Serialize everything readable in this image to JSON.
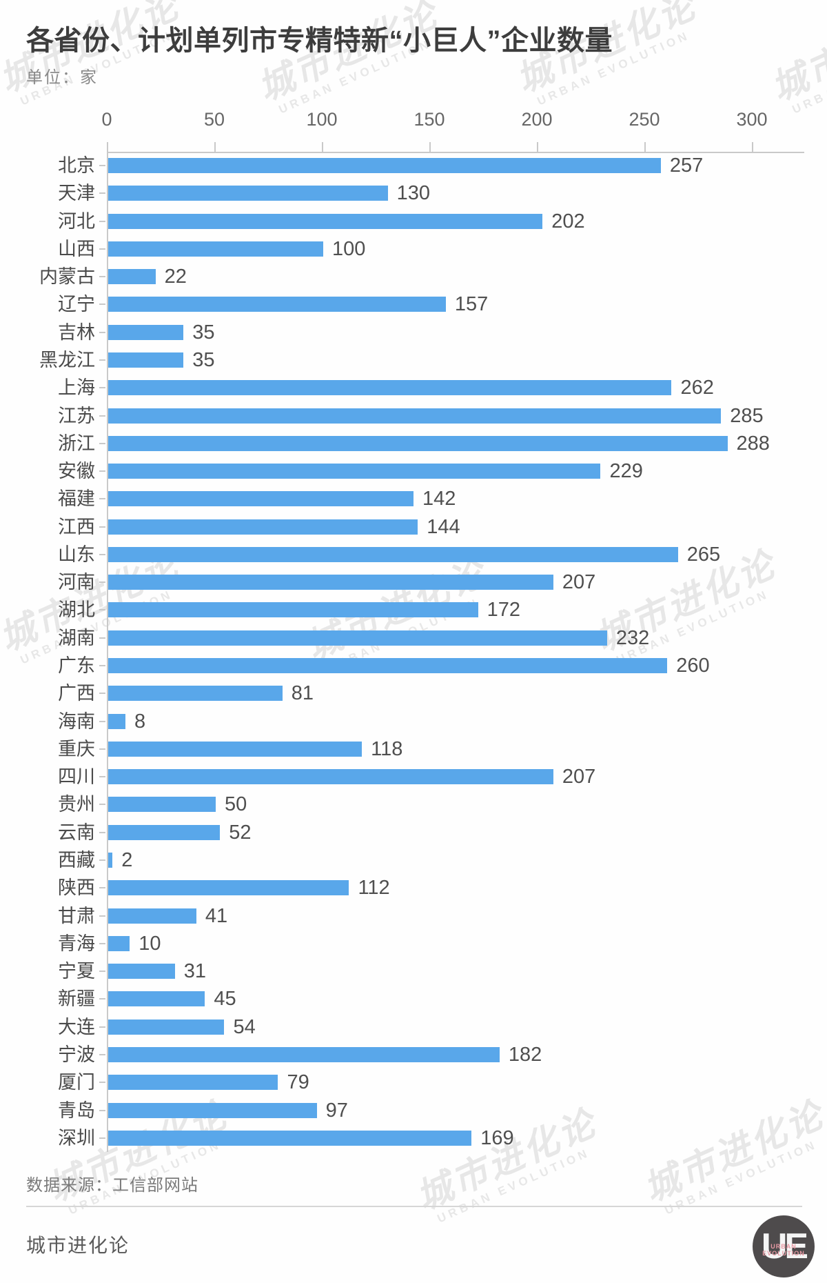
{
  "page": {
    "title": "各省份、计划单列市专精特新“小巨人”企业数量",
    "unit_label": "单位：家",
    "source_label": "数据来源：工信部网站",
    "footer_brand": "城市进化论",
    "watermark_zh": "城市进化论",
    "watermark_en": "URBAN EVOLUTION",
    "logo": {
      "monogram": "UE",
      "line1": "URBAN",
      "line2": "EVOLUTION"
    }
  },
  "colors": {
    "bar": "#59a7ea",
    "axis": "#c9c9c9",
    "title-text": "#3d3d3d",
    "label-text": "#4a4a4a",
    "value-text": "#4f4f4f",
    "tick-text": "#666666",
    "muted-text": "#8a8a8a",
    "logo-bg": "#4e4b4c",
    "logo-accent": "#e89aa4"
  },
  "chart_data": {
    "type": "bar",
    "orientation": "horizontal",
    "title": "各省份、计划单列市专精特新“小巨人”企业数量",
    "unit": "家",
    "xlabel": "",
    "ylabel": "",
    "xlim": [
      0,
      300
    ],
    "x_ticks": [
      0,
      50,
      100,
      150,
      200,
      250,
      300
    ],
    "grid": false,
    "legend": false,
    "source": "工信部网站",
    "categories": [
      "北京",
      "天津",
      "河北",
      "山西",
      "内蒙古",
      "辽宁",
      "吉林",
      "黑龙江",
      "上海",
      "江苏",
      "浙江",
      "安徽",
      "福建",
      "江西",
      "山东",
      "河南",
      "湖北",
      "湖南",
      "广东",
      "广西",
      "海南",
      "重庆",
      "四川",
      "贵州",
      "云南",
      "西藏",
      "陕西",
      "甘肃",
      "青海",
      "宁夏",
      "新疆",
      "大连",
      "宁波",
      "厦门",
      "青岛",
      "深圳"
    ],
    "values": [
      257,
      130,
      202,
      100,
      22,
      157,
      35,
      35,
      262,
      285,
      288,
      229,
      142,
      144,
      265,
      207,
      172,
      232,
      260,
      81,
      8,
      118,
      207,
      50,
      52,
      2,
      112,
      41,
      10,
      31,
      45,
      54,
      182,
      79,
      97,
      169
    ]
  }
}
